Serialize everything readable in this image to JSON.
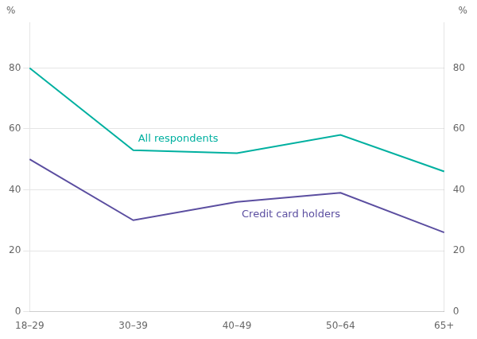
{
  "chart_data": {
    "type": "line",
    "categories": [
      "18–29",
      "30–39",
      "40–49",
      "50–64",
      "65+"
    ],
    "series": [
      {
        "name": "All respondents",
        "color": "#00B0A0",
        "values": [
          80,
          53,
          52,
          58,
          46
        ]
      },
      {
        "name": "Credit card holders",
        "color": "#5B4EA0",
        "values": [
          50,
          30,
          36,
          39,
          26
        ]
      }
    ],
    "ylabel": "%",
    "y2label": "%",
    "ylim": [
      0,
      95
    ],
    "yticks": [
      0,
      20,
      40,
      60,
      80
    ],
    "y2lim": [
      0,
      95
    ],
    "y2ticks": [
      0,
      20,
      40,
      60,
      80
    ],
    "grid": true
  }
}
